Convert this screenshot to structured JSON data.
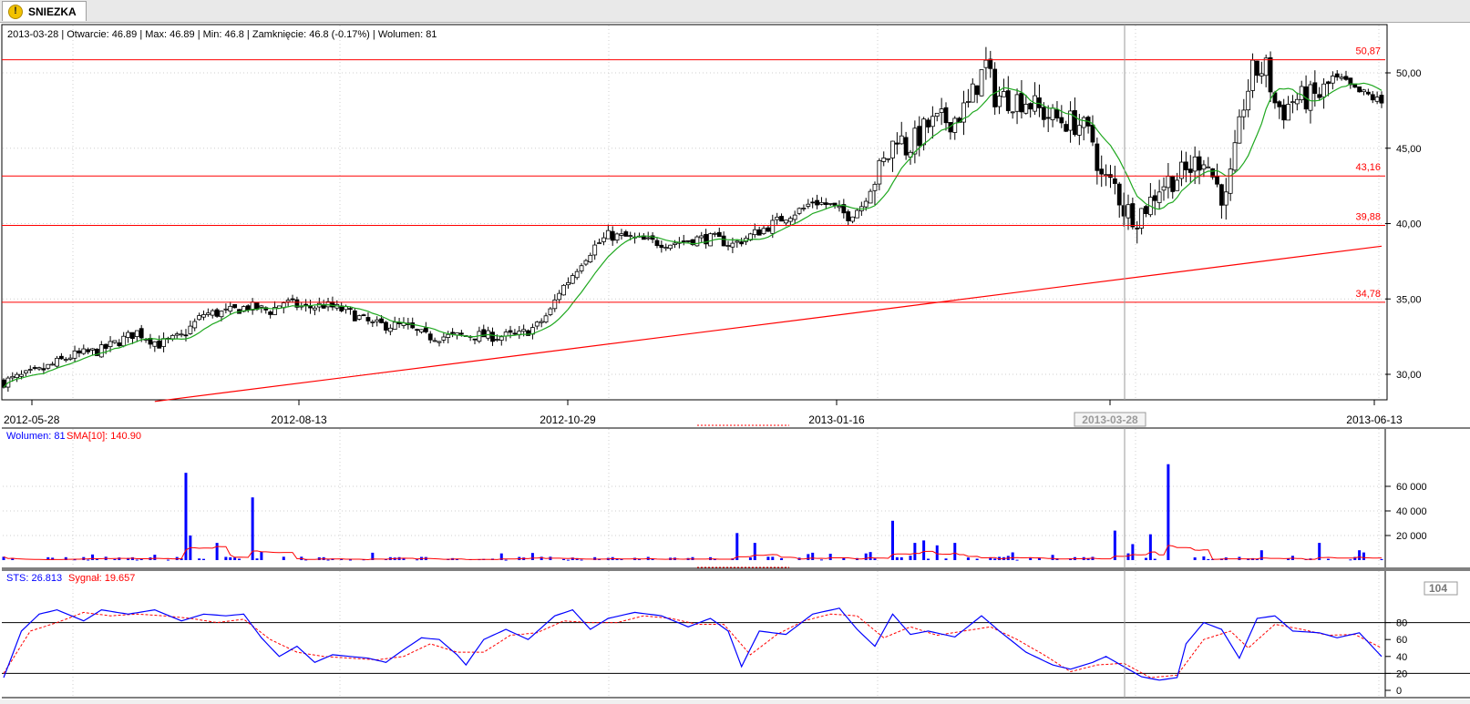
{
  "tab": {
    "label": "SNIEZKA",
    "icon": "warning-icon"
  },
  "colors": {
    "candle": "#000000",
    "sma": "#1fa81f",
    "level": "#ff0000",
    "volume": "#0000ff",
    "volume_sma": "#ff0000",
    "sts": "#0000ff",
    "signal": "#ff0000"
  },
  "price_panel": {
    "info": "2013-03-28 | Otwarcie: 46.89 | Max: 46.89 | Min: 46.8 | Zamknięcie: 46.8 (-0.17%)  | Wolumen: 81",
    "y_ticks": [
      "50,00",
      "45,00",
      "40,00",
      "35,00",
      "30,00"
    ],
    "x_ticks": [
      "2012-05-28",
      "2012-08-13",
      "2012-10-29",
      "2013-01-16",
      "2013-03-28",
      "2013-06-13"
    ],
    "selected_date": "2013-03-28",
    "levels": [
      {
        "value": 50.87,
        "label": "50,87"
      },
      {
        "value": 43.16,
        "label": "43,16"
      },
      {
        "value": 39.88,
        "label": "39,88"
      },
      {
        "value": 34.78,
        "label": "34,78"
      }
    ]
  },
  "volume_panel": {
    "legend_volume": "Wolumen: 81",
    "legend_sma": "SMA[10]: 140.90",
    "y_ticks": [
      "60 000",
      "40 000",
      "20 000"
    ]
  },
  "sts_panel": {
    "legend_sts": "STS: 26.813",
    "legend_signal": "Sygnał: 19.657",
    "y_ticks": [
      "80",
      "60",
      "40",
      "20",
      "0"
    ],
    "current_value": "104"
  },
  "chart_data": {
    "type": "line",
    "date_range": [
      "2012-05-28",
      "2013-06-18"
    ],
    "price_range": [
      28.0,
      52.0
    ],
    "price_anchors": [
      [
        0,
        29.5
      ],
      [
        8,
        30.2
      ],
      [
        15,
        31.2
      ],
      [
        22,
        31.6
      ],
      [
        30,
        32.8
      ],
      [
        35,
        32.0
      ],
      [
        40,
        32.5
      ],
      [
        45,
        34.0
      ],
      [
        50,
        34.1
      ],
      [
        55,
        34.5
      ],
      [
        60,
        34.2
      ],
      [
        63,
        34.8
      ],
      [
        68,
        34.4
      ],
      [
        72,
        34.6
      ],
      [
        77,
        34.2
      ],
      [
        83,
        33.3
      ],
      [
        90,
        33.2
      ],
      [
        95,
        32.5
      ],
      [
        100,
        32.5
      ],
      [
        106,
        32.6
      ],
      [
        111,
        32.5
      ],
      [
        116,
        32.6
      ],
      [
        120,
        33.2
      ],
      [
        123,
        34.2
      ],
      [
        125,
        35.5
      ],
      [
        127,
        36.2
      ],
      [
        130,
        37.5
      ],
      [
        133,
        38.5
      ],
      [
        136,
        39.2
      ],
      [
        140,
        39.1
      ],
      [
        145,
        38.8
      ],
      [
        150,
        38.7
      ],
      [
        156,
        39.0
      ],
      [
        160,
        39.0
      ],
      [
        164,
        38.6
      ],
      [
        168,
        39.2
      ],
      [
        172,
        39.8
      ],
      [
        176,
        40.5
      ],
      [
        180,
        41.0
      ],
      [
        182,
        41.5
      ],
      [
        186,
        41.2
      ],
      [
        190,
        40.5
      ],
      [
        193,
        41.2
      ],
      [
        196,
        43.0
      ],
      [
        199,
        44.5
      ],
      [
        201,
        46.0
      ],
      [
        203,
        45.0
      ],
      [
        205,
        45.5
      ],
      [
        208,
        46.5
      ],
      [
        211,
        46.8
      ],
      [
        214,
        47.0
      ],
      [
        217,
        47.8
      ],
      [
        219,
        49.3
      ],
      [
        221,
        50.5
      ],
      [
        223,
        48.5
      ],
      [
        226,
        48.3
      ],
      [
        230,
        48.2
      ],
      [
        233,
        47.5
      ],
      [
        236,
        47.0
      ],
      [
        239,
        46.8
      ],
      [
        242,
        46.6
      ],
      [
        245,
        45.5
      ],
      [
        247,
        43.0
      ],
      [
        250,
        42.5
      ],
      [
        252,
        41.0
      ],
      [
        255,
        40.5
      ],
      [
        258,
        41.5
      ],
      [
        260,
        42.5
      ],
      [
        263,
        43.0
      ],
      [
        266,
        43.4
      ],
      [
        268,
        44.0
      ],
      [
        270,
        44.5
      ],
      [
        273,
        42.5
      ],
      [
        275,
        41.5
      ],
      [
        277,
        44.5
      ],
      [
        279,
        48.0
      ],
      [
        281,
        50.0
      ],
      [
        284,
        50.3
      ],
      [
        286,
        48.0
      ],
      [
        288,
        47.5
      ],
      [
        290,
        48.2
      ],
      [
        293,
        48.3
      ],
      [
        296,
        48.5
      ],
      [
        299,
        49.5
      ],
      [
        301,
        49.5
      ],
      [
        304,
        48.8
      ],
      [
        307,
        48.5
      ],
      [
        310,
        48.0
      ]
    ],
    "trendline": [
      [
        34,
        28.2
      ],
      [
        310,
        38.5
      ]
    ],
    "volume_spikes": [
      [
        41,
        71000
      ],
      [
        42,
        20000
      ],
      [
        48,
        14000
      ],
      [
        56,
        51000
      ],
      [
        83,
        6000
      ],
      [
        165,
        22000
      ],
      [
        169,
        14000
      ],
      [
        182,
        6000
      ],
      [
        200,
        32000
      ],
      [
        205,
        14000
      ],
      [
        207,
        16000
      ],
      [
        210,
        12000
      ],
      [
        214,
        14000
      ],
      [
        250,
        24000
      ],
      [
        254,
        13000
      ],
      [
        258,
        21000
      ],
      [
        262,
        78000
      ],
      [
        270,
        3000
      ],
      [
        283,
        8000
      ],
      [
        296,
        14000
      ],
      [
        305,
        8000
      ]
    ],
    "sts_anchors": [
      [
        0,
        15
      ],
      [
        4,
        70
      ],
      [
        8,
        90
      ],
      [
        12,
        95
      ],
      [
        18,
        82
      ],
      [
        22,
        95
      ],
      [
        28,
        90
      ],
      [
        34,
        95
      ],
      [
        40,
        82
      ],
      [
        45,
        90
      ],
      [
        50,
        88
      ],
      [
        54,
        90
      ],
      [
        58,
        62
      ],
      [
        62,
        40
      ],
      [
        66,
        52
      ],
      [
        70,
        33
      ],
      [
        74,
        42
      ],
      [
        78,
        40
      ],
      [
        82,
        38
      ],
      [
        86,
        33
      ],
      [
        90,
        48
      ],
      [
        94,
        62
      ],
      [
        98,
        60
      ],
      [
        102,
        42
      ],
      [
        104,
        30
      ],
      [
        108,
        60
      ],
      [
        113,
        72
      ],
      [
        118,
        60
      ],
      [
        124,
        88
      ],
      [
        128,
        95
      ],
      [
        132,
        72
      ],
      [
        136,
        85
      ],
      [
        142,
        92
      ],
      [
        148,
        88
      ],
      [
        154,
        75
      ],
      [
        159,
        85
      ],
      [
        163,
        70
      ],
      [
        166,
        28
      ],
      [
        170,
        70
      ],
      [
        176,
        66
      ],
      [
        182,
        90
      ],
      [
        188,
        97
      ],
      [
        192,
        72
      ],
      [
        196,
        52
      ],
      [
        200,
        90
      ],
      [
        204,
        66
      ],
      [
        208,
        70
      ],
      [
        214,
        63
      ],
      [
        220,
        88
      ],
      [
        224,
        70
      ],
      [
        230,
        45
      ],
      [
        236,
        30
      ],
      [
        240,
        25
      ],
      [
        245,
        33
      ],
      [
        248,
        40
      ],
      [
        252,
        28
      ],
      [
        256,
        16
      ],
      [
        260,
        12
      ],
      [
        264,
        15
      ],
      [
        266,
        55
      ],
      [
        270,
        80
      ],
      [
        274,
        72
      ],
      [
        278,
        38
      ],
      [
        282,
        85
      ],
      [
        286,
        88
      ],
      [
        290,
        70
      ],
      [
        296,
        68
      ],
      [
        300,
        62
      ],
      [
        305,
        68
      ],
      [
        310,
        40
      ]
    ],
    "signal_anchors": [
      [
        0,
        20
      ],
      [
        6,
        70
      ],
      [
        12,
        80
      ],
      [
        18,
        92
      ],
      [
        24,
        88
      ],
      [
        30,
        90
      ],
      [
        36,
        88
      ],
      [
        42,
        85
      ],
      [
        48,
        80
      ],
      [
        54,
        84
      ],
      [
        60,
        60
      ],
      [
        66,
        45
      ],
      [
        72,
        40
      ],
      [
        78,
        38
      ],
      [
        84,
        36
      ],
      [
        90,
        40
      ],
      [
        96,
        55
      ],
      [
        102,
        45
      ],
      [
        108,
        45
      ],
      [
        114,
        65
      ],
      [
        120,
        68
      ],
      [
        126,
        82
      ],
      [
        132,
        80
      ],
      [
        138,
        80
      ],
      [
        144,
        88
      ],
      [
        150,
        85
      ],
      [
        156,
        78
      ],
      [
        162,
        78
      ],
      [
        168,
        42
      ],
      [
        174,
        66
      ],
      [
        180,
        82
      ],
      [
        186,
        90
      ],
      [
        192,
        88
      ],
      [
        198,
        62
      ],
      [
        204,
        75
      ],
      [
        210,
        65
      ],
      [
        216,
        70
      ],
      [
        222,
        75
      ],
      [
        228,
        60
      ],
      [
        234,
        42
      ],
      [
        240,
        22
      ],
      [
        246,
        30
      ],
      [
        252,
        32
      ],
      [
        258,
        15
      ],
      [
        264,
        18
      ],
      [
        270,
        60
      ],
      [
        276,
        70
      ],
      [
        280,
        50
      ],
      [
        286,
        78
      ],
      [
        292,
        72
      ],
      [
        298,
        65
      ],
      [
        304,
        66
      ],
      [
        310,
        50
      ]
    ],
    "sts_reference_lines": [
      80,
      20
    ]
  }
}
